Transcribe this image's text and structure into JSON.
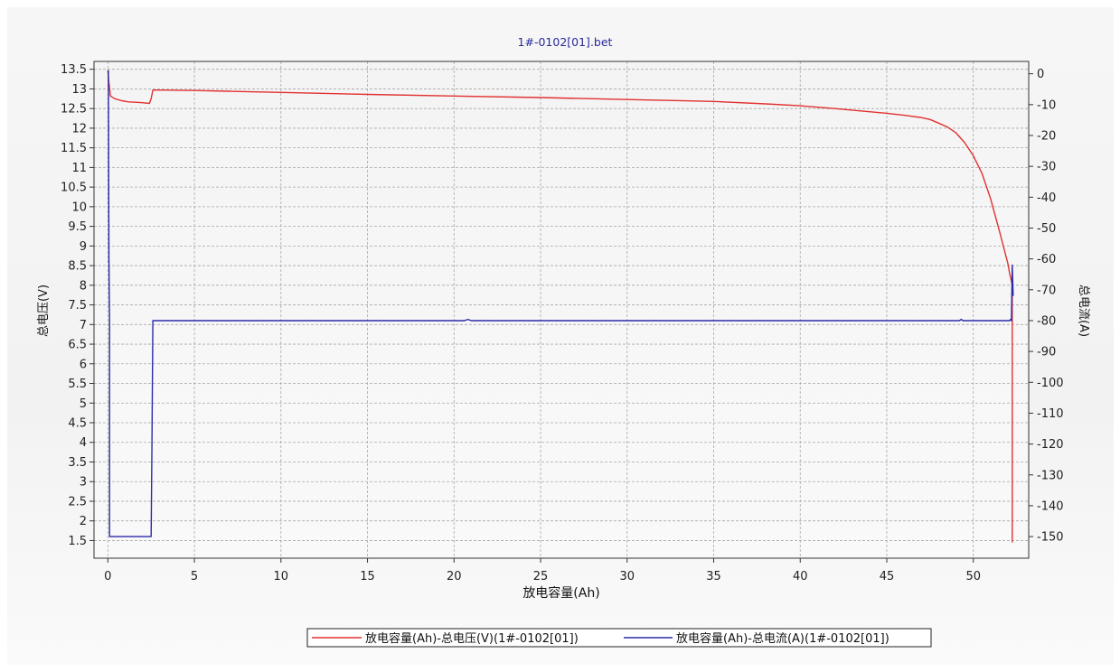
{
  "chart_data": {
    "type": "line",
    "title": "1#-0102[01].bet",
    "xlabel": "放电容量(Ah)",
    "ylabel": "总电压(V)",
    "y2label": "总电流(A)",
    "xlim": [
      -0.8,
      53.2
    ],
    "ylim": [
      1.05,
      13.7
    ],
    "y2lim": [
      -157,
      4
    ],
    "x_ticks": [
      0,
      5,
      10,
      15,
      20,
      25,
      30,
      35,
      40,
      45,
      50
    ],
    "y_ticks": [
      1.5,
      2,
      2.5,
      3,
      3.5,
      4,
      4.5,
      5,
      5.5,
      6,
      6.5,
      7,
      7.5,
      8,
      8.5,
      9,
      9.5,
      10,
      10.5,
      11,
      11.5,
      12,
      12.5,
      13,
      13.5
    ],
    "y2_ticks": [
      0,
      -10,
      -20,
      -30,
      -40,
      -50,
      -60,
      -70,
      -80,
      -90,
      -100,
      -110,
      -120,
      -130,
      -140,
      -150
    ],
    "grid": true,
    "legend_position": "bottom",
    "series": [
      {
        "name": "放电容量(Ah)-总电压(V)(1#-0102[01])",
        "axis": "left",
        "color": "#e23030",
        "x": [
          0,
          0.05,
          0.15,
          0.4,
          0.8,
          1.2,
          1.6,
          2.0,
          2.4,
          2.5,
          2.6,
          3,
          5,
          7,
          10,
          15,
          20,
          25,
          30,
          35,
          38,
          40,
          42,
          44,
          45,
          46,
          47,
          47.5,
          48,
          48.5,
          49,
          49.5,
          50,
          50.5,
          51,
          51.5,
          52,
          52.1,
          52.2,
          52.25,
          52.25
        ],
        "y": [
          13.48,
          13.2,
          12.82,
          12.75,
          12.7,
          12.67,
          12.66,
          12.65,
          12.63,
          12.75,
          12.97,
          12.97,
          12.96,
          12.94,
          12.91,
          12.86,
          12.82,
          12.78,
          12.73,
          12.68,
          12.62,
          12.57,
          12.5,
          12.42,
          12.38,
          12.33,
          12.27,
          12.22,
          12.13,
          12.03,
          11.88,
          11.63,
          11.3,
          10.85,
          10.2,
          9.4,
          8.55,
          8.3,
          8.1,
          8.0,
          1.45
        ]
      },
      {
        "name": "放电容量(Ah)-总电流(A)(1#-0102[01])",
        "axis": "right",
        "color": "#2a2aa8",
        "x": [
          0,
          0.03,
          0.06,
          0.1,
          0.1,
          2.5,
          2.55,
          2.6,
          20.6,
          20.8,
          21,
          49.2,
          49.3,
          49.4,
          52.1,
          52.15,
          52.2,
          52.25,
          52.3
        ],
        "y": [
          1,
          1,
          -60,
          -80,
          -150,
          -150,
          -120,
          -80,
          -80,
          -79.6,
          -80,
          -80,
          -79.6,
          -80,
          -80,
          -79.6,
          -80,
          -62,
          -72
        ]
      }
    ]
  }
}
